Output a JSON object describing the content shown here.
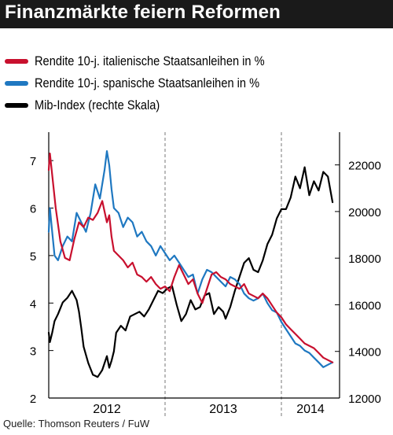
{
  "header": {
    "title": "Finanzmärkte feiern Reformen"
  },
  "source": "Quelle: Thomson Reuters / FuW",
  "colors": {
    "italy": "#c8102e",
    "spain": "#1f78c1",
    "mib": "#000000",
    "title_bg": "#1a1a1a"
  },
  "chart_data": {
    "type": "line",
    "title": "Finanzmärkte feiern Reformen",
    "x_categories": [
      "2012",
      "2013",
      "2014"
    ],
    "x_range": [
      2012.0,
      2014.5
    ],
    "y_left": {
      "range": [
        2,
        7.4
      ],
      "ticks": [
        "2",
        "3",
        "4",
        "5",
        "6",
        "7"
      ]
    },
    "y_right": {
      "range": [
        12000,
        23000
      ],
      "ticks": [
        "12000",
        "14000",
        "16000",
        "18000",
        "20000",
        "22000"
      ]
    },
    "legend_position": "top-left",
    "series": [
      {
        "name": "Rendite 10-j. italienische Staatsanleihen in %",
        "axis": "left",
        "color": "#c8102e",
        "x": [
          2012.0,
          2012.01,
          2012.03,
          2012.06,
          2012.1,
          2012.14,
          2012.18,
          2012.22,
          2012.26,
          2012.3,
          2012.34,
          2012.38,
          2012.42,
          2012.46,
          2012.5,
          2012.52,
          2012.54,
          2012.56,
          2012.6,
          2012.64,
          2012.68,
          2012.72,
          2012.76,
          2012.8,
          2012.84,
          2012.88,
          2012.92,
          2012.96,
          2013.0,
          2013.04,
          2013.08,
          2013.12,
          2013.16,
          2013.2,
          2013.24,
          2013.28,
          2013.32,
          2013.36,
          2013.4,
          2013.44,
          2013.48,
          2013.52,
          2013.56,
          2013.6,
          2013.64,
          2013.68,
          2013.72,
          2013.76,
          2013.8,
          2013.84,
          2013.88,
          2013.92,
          2013.96,
          2014.0,
          2014.04,
          2014.08,
          2014.12,
          2014.16,
          2014.2,
          2014.24,
          2014.28,
          2014.32,
          2014.36,
          2014.4,
          2014.44
        ],
        "y": [
          6.8,
          7.15,
          6.7,
          6.0,
          5.3,
          4.95,
          4.9,
          5.35,
          5.7,
          5.6,
          5.8,
          5.75,
          5.9,
          6.15,
          5.7,
          5.85,
          5.4,
          5.1,
          5.0,
          4.9,
          4.75,
          4.85,
          4.6,
          4.55,
          4.45,
          4.55,
          4.4,
          4.3,
          4.35,
          4.25,
          4.55,
          4.8,
          4.6,
          4.4,
          4.5,
          4.2,
          4.0,
          4.3,
          4.6,
          4.65,
          4.55,
          4.5,
          4.4,
          4.35,
          4.3,
          4.4,
          4.2,
          4.15,
          4.1,
          4.2,
          4.1,
          3.95,
          3.8,
          3.7,
          3.55,
          3.45,
          3.35,
          3.25,
          3.15,
          3.1,
          3.05,
          2.95,
          2.85,
          2.8,
          2.75
        ]
      },
      {
        "name": "Rendite 10-j. spanische Staatsanleihen in %",
        "axis": "left",
        "color": "#1f78c1",
        "x": [
          2012.0,
          2012.01,
          2012.03,
          2012.05,
          2012.08,
          2012.12,
          2012.16,
          2012.2,
          2012.24,
          2012.28,
          2012.32,
          2012.36,
          2012.4,
          2012.44,
          2012.48,
          2012.5,
          2012.52,
          2012.54,
          2012.56,
          2012.6,
          2012.64,
          2012.68,
          2012.72,
          2012.76,
          2012.8,
          2012.84,
          2012.88,
          2012.92,
          2012.96,
          2013.0,
          2013.04,
          2013.08,
          2013.12,
          2013.16,
          2013.2,
          2013.24,
          2013.28,
          2013.32,
          2013.36,
          2013.4,
          2013.44,
          2013.48,
          2013.52,
          2013.56,
          2013.6,
          2013.64,
          2013.68,
          2013.72,
          2013.76,
          2013.8,
          2013.84,
          2013.88,
          2013.92,
          2013.96,
          2014.0,
          2014.04,
          2014.08,
          2014.12,
          2014.16,
          2014.2,
          2014.24,
          2014.28,
          2014.32,
          2014.36,
          2014.4,
          2014.44
        ],
        "y": [
          5.5,
          6.0,
          5.5,
          5.0,
          4.9,
          5.2,
          5.4,
          5.3,
          5.9,
          5.7,
          5.5,
          5.9,
          6.5,
          6.2,
          6.8,
          7.2,
          6.9,
          6.4,
          6.0,
          5.9,
          5.6,
          5.8,
          5.7,
          5.4,
          5.5,
          5.3,
          5.2,
          5.0,
          5.2,
          5.05,
          4.9,
          5.0,
          4.85,
          4.7,
          4.55,
          4.6,
          4.2,
          4.5,
          4.7,
          4.65,
          4.55,
          4.45,
          4.35,
          4.55,
          4.5,
          4.4,
          4.2,
          4.1,
          4.05,
          4.1,
          4.2,
          4.0,
          3.85,
          3.8,
          3.6,
          3.45,
          3.3,
          3.15,
          3.1,
          3.0,
          2.95,
          2.85,
          2.75,
          2.65,
          2.7,
          2.75
        ]
      },
      {
        "name": "Mib-Index (rechte Skala)",
        "axis": "right",
        "color": "#000000",
        "x": [
          2012.0,
          2012.01,
          2012.03,
          2012.05,
          2012.08,
          2012.12,
          2012.16,
          2012.2,
          2012.24,
          2012.26,
          2012.28,
          2012.3,
          2012.34,
          2012.38,
          2012.42,
          2012.46,
          2012.5,
          2012.52,
          2012.54,
          2012.56,
          2012.58,
          2012.62,
          2012.66,
          2012.7,
          2012.74,
          2012.78,
          2012.82,
          2012.86,
          2012.9,
          2012.94,
          2012.98,
          2013.02,
          2013.06,
          2013.1,
          2013.14,
          2013.18,
          2013.22,
          2013.26,
          2013.3,
          2013.34,
          2013.38,
          2013.42,
          2013.46,
          2013.5,
          2013.52,
          2013.56,
          2013.6,
          2013.64,
          2013.68,
          2013.72,
          2013.76,
          2013.8,
          2013.84,
          2013.88,
          2013.92,
          2013.96,
          2014.0,
          2014.04,
          2014.08,
          2014.12,
          2014.16,
          2014.2,
          2014.24,
          2014.28,
          2014.32,
          2014.36,
          2014.4,
          2014.44
        ],
        "y": [
          14800,
          14400,
          14800,
          15300,
          15600,
          16100,
          16300,
          16600,
          16200,
          15700,
          15000,
          14200,
          13500,
          13000,
          12900,
          13200,
          13800,
          13300,
          13600,
          14000,
          14800,
          15100,
          14900,
          15500,
          15600,
          15700,
          15500,
          15800,
          16200,
          16600,
          16500,
          16700,
          16800,
          16000,
          15300,
          15600,
          16200,
          15800,
          15900,
          16400,
          16500,
          15600,
          15900,
          15700,
          15400,
          15900,
          16600,
          17200,
          17800,
          18000,
          17500,
          17400,
          17900,
          18600,
          19000,
          19700,
          20100,
          20100,
          20600,
          21500,
          21000,
          21900,
          20700,
          21300,
          20900,
          21700,
          21500,
          20400
        ]
      }
    ]
  }
}
